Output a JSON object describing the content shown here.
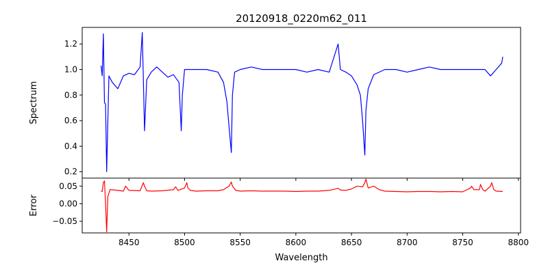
{
  "chart_data": [
    {
      "type": "line",
      "title": "20120918_0220m62_011",
      "xlabel": "",
      "ylabel": "Spectrum",
      "xlim": [
        8408,
        8802
      ],
      "ylim": [
        0.15,
        1.33
      ],
      "yticks": [
        0.2,
        0.4,
        0.6,
        0.8,
        1.0,
        1.2
      ],
      "ytick_labels": [
        "0.2",
        "0.4",
        "0.6",
        "0.8",
        "1.0",
        "1.2"
      ],
      "x_tick_labels_shown": false,
      "series": [
        {
          "color": "#0000ff",
          "x": [
            8425,
            8426,
            8427,
            8428,
            8429,
            8430,
            8432,
            8435,
            8440,
            8445,
            8450,
            8455,
            8460,
            8462,
            8464,
            8466,
            8470,
            8475,
            8480,
            8485,
            8490,
            8495,
            8497,
            8498,
            8500,
            8505,
            8510,
            8520,
            8530,
            8535,
            8538,
            8540,
            8542,
            8543,
            8545,
            8550,
            8560,
            8570,
            8580,
            8590,
            8600,
            8610,
            8620,
            8630,
            8638,
            8640,
            8645,
            8650,
            8655,
            8658,
            8660,
            8662,
            8663,
            8665,
            8670,
            8680,
            8690,
            8700,
            8710,
            8720,
            8730,
            8740,
            8750,
            8760,
            8770,
            8775,
            8780,
            8785,
            8786
          ],
          "values": [
            1.03,
            0.95,
            1.28,
            0.74,
            0.73,
            0.2,
            0.95,
            0.9,
            0.85,
            0.95,
            0.97,
            0.96,
            1.02,
            1.29,
            0.52,
            0.92,
            0.98,
            1.02,
            0.98,
            0.94,
            0.96,
            0.9,
            0.52,
            0.8,
            1.0,
            1.0,
            1.0,
            1.0,
            0.98,
            0.9,
            0.75,
            0.55,
            0.35,
            0.8,
            0.98,
            1.0,
            1.02,
            1.0,
            1.0,
            1.0,
            1.0,
            0.98,
            1.0,
            0.98,
            1.2,
            1.0,
            0.98,
            0.95,
            0.88,
            0.8,
            0.6,
            0.33,
            0.68,
            0.85,
            0.96,
            1.0,
            1.0,
            0.98,
            1.0,
            1.02,
            1.0,
            1.0,
            1.0,
            1.0,
            1.0,
            0.95,
            1.0,
            1.05,
            1.1
          ]
        }
      ]
    },
    {
      "type": "line",
      "title": "",
      "xlabel": "Wavelength",
      "ylabel": "Error",
      "xlim": [
        8408,
        8802
      ],
      "ylim": [
        -0.083,
        0.073
      ],
      "xticks": [
        8450,
        8500,
        8550,
        8600,
        8650,
        8700,
        8750,
        8800
      ],
      "xtick_labels": [
        "8450",
        "8500",
        "8550",
        "8600",
        "8650",
        "8700",
        "8750",
        "8800"
      ],
      "yticks": [
        -0.05,
        0.0,
        0.05
      ],
      "ytick_labels": [
        "−0.05",
        "0.00",
        "0.05"
      ],
      "series": [
        {
          "color": "#ff0000",
          "x": [
            8425,
            8426,
            8427,
            8428,
            8429,
            8430,
            8431,
            8433,
            8440,
            8445,
            8447,
            8450,
            8460,
            8463,
            8464,
            8466,
            8470,
            8480,
            8490,
            8492,
            8494,
            8500,
            8502,
            8503,
            8505,
            8510,
            8520,
            8530,
            8535,
            8540,
            8542,
            8543,
            8546,
            8550,
            8560,
            8570,
            8580,
            8590,
            8600,
            8610,
            8620,
            8630,
            8638,
            8640,
            8645,
            8650,
            8655,
            8660,
            8662,
            8663,
            8665,
            8670,
            8675,
            8680,
            8690,
            8700,
            8710,
            8720,
            8730,
            8740,
            8750,
            8757,
            8758,
            8760,
            8765,
            8766,
            8768,
            8770,
            8775,
            8776,
            8778,
            8780,
            8786
          ],
          "values": [
            0.036,
            0.035,
            0.06,
            0.065,
            0.0,
            -0.08,
            0.02,
            0.04,
            0.038,
            0.036,
            0.05,
            0.038,
            0.037,
            0.06,
            0.05,
            0.037,
            0.036,
            0.037,
            0.04,
            0.048,
            0.038,
            0.045,
            0.06,
            0.045,
            0.038,
            0.036,
            0.037,
            0.037,
            0.04,
            0.05,
            0.062,
            0.05,
            0.038,
            0.036,
            0.037,
            0.036,
            0.036,
            0.036,
            0.035,
            0.036,
            0.036,
            0.038,
            0.044,
            0.039,
            0.038,
            0.042,
            0.05,
            0.048,
            0.06,
            0.07,
            0.045,
            0.05,
            0.04,
            0.036,
            0.035,
            0.034,
            0.035,
            0.035,
            0.034,
            0.035,
            0.034,
            0.045,
            0.05,
            0.04,
            0.04,
            0.055,
            0.04,
            0.036,
            0.05,
            0.06,
            0.04,
            0.036,
            0.035
          ]
        }
      ]
    }
  ]
}
